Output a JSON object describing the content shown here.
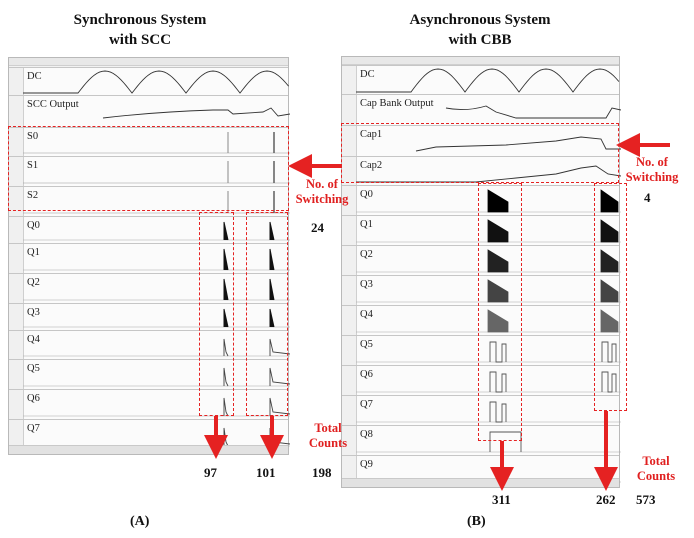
{
  "left": {
    "title_line1": "Synchronous System",
    "title_line2": "with SCC",
    "signals": [
      "DC",
      "SCC Output",
      "S0",
      "S1",
      "S2",
      "Q0",
      "Q1",
      "Q2",
      "Q3",
      "Q4",
      "Q5",
      "Q6",
      "Q7"
    ],
    "switching_label_line1": "No. of",
    "switching_label_line2": "Switching",
    "switching_count": "24",
    "total_label_line1": "Total",
    "total_label_line2": "Counts",
    "count_a": "97",
    "count_b": "101",
    "count_total": "198",
    "caption": "(A)"
  },
  "right": {
    "title_line1": "Asynchronous System",
    "title_line2": "with CBB",
    "signals": [
      "DC",
      "Cap Bank Output",
      "Cap1",
      "Cap2",
      "Q0",
      "Q1",
      "Q2",
      "Q3",
      "Q4",
      "Q5",
      "Q6",
      "Q7",
      "Q8",
      "Q9"
    ],
    "switching_label_line1": "No. of",
    "switching_label_line2": "Switching",
    "switching_count": "4",
    "total_label_line1": "Total",
    "total_label_line2": "Counts",
    "count_a": "311",
    "count_b": "262",
    "count_total": "573",
    "caption": "(B)"
  },
  "colors": {
    "annotation": "#e02020",
    "trace": "#333333"
  }
}
